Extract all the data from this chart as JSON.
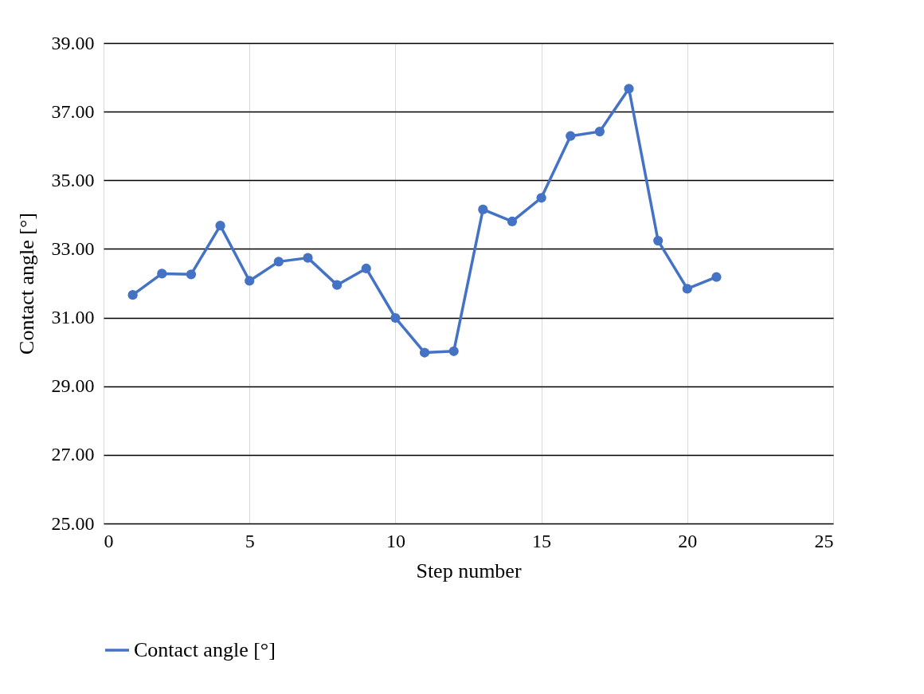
{
  "chart_data": {
    "type": "line",
    "xlabel": "Step number",
    "ylabel": "Contact angle [°]",
    "x": [
      1,
      2,
      3,
      4,
      5,
      6,
      7,
      8,
      9,
      10,
      11,
      12,
      13,
      14,
      15,
      16,
      17,
      18,
      19,
      20,
      21
    ],
    "series": [
      {
        "name": "Contact angle [°]",
        "color": "#4472c4",
        "values": [
          31.66,
          32.28,
          32.26,
          33.68,
          32.07,
          32.63,
          32.74,
          31.95,
          32.43,
          30.99,
          29.98,
          30.02,
          34.15,
          33.8,
          34.49,
          36.29,
          36.42,
          37.67,
          33.24,
          31.84,
          32.18
        ]
      }
    ],
    "xlim": [
      0,
      25
    ],
    "xticks": [
      0,
      5,
      10,
      15,
      20,
      25
    ],
    "ylim": [
      25,
      39
    ],
    "yticks": [
      {
        "value": 25,
        "label": "25.00"
      },
      {
        "value": 27,
        "label": "27.00"
      },
      {
        "value": 29,
        "label": "29.00"
      },
      {
        "value": 31,
        "label": "31.00"
      },
      {
        "value": 33,
        "label": "33.00"
      },
      {
        "value": 35,
        "label": "35.00"
      },
      {
        "value": 37,
        "label": "37.00"
      },
      {
        "value": 39,
        "label": "39.00"
      }
    ],
    "grid": true,
    "legend": "bottom",
    "marker": "circle",
    "line_style": "solid"
  }
}
